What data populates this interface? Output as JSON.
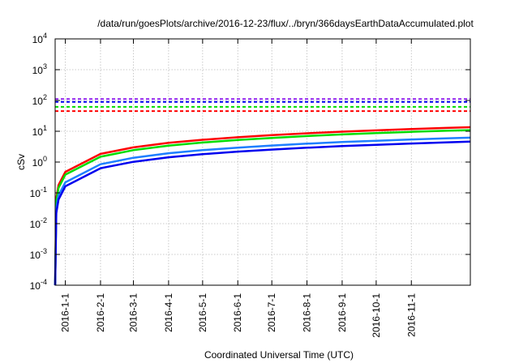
{
  "chart_data": {
    "type": "line",
    "title": "/data/run/goesPlots/archive/2016-12-23/flux/../bryn/366daysEarthDataAccumulated.plot",
    "xlabel": "Coordinated Universal Time (UTC)",
    "ylabel": "cSv",
    "yscale": "log",
    "ylim": [
      0.0001,
      10000
    ],
    "xlim_days_since_2015_12_23": [
      0,
      366
    ],
    "grid": true,
    "y_ticks": [
      {
        "value": 0.0001,
        "base": "10",
        "exp": "-4"
      },
      {
        "value": 0.001,
        "base": "10",
        "exp": "-3"
      },
      {
        "value": 0.01,
        "base": "10",
        "exp": "-2"
      },
      {
        "value": 0.1,
        "base": "10",
        "exp": "-1"
      },
      {
        "value": 1,
        "base": "10",
        "exp": "0"
      },
      {
        "value": 10,
        "base": "10",
        "exp": "1"
      },
      {
        "value": 100,
        "base": "10",
        "exp": "2"
      },
      {
        "value": 1000,
        "base": "10",
        "exp": "3"
      },
      {
        "value": 10000,
        "base": "10",
        "exp": "4"
      }
    ],
    "x_ticks": [
      {
        "day": 9,
        "label": "2016-1-1"
      },
      {
        "day": 40,
        "label": "2016-2-1"
      },
      {
        "day": 69,
        "label": "2016-3-1"
      },
      {
        "day": 100,
        "label": "2016-4-1"
      },
      {
        "day": 130,
        "label": "2016-5-1"
      },
      {
        "day": 161,
        "label": "2016-6-1"
      },
      {
        "day": 191,
        "label": "2016-7-1"
      },
      {
        "day": 222,
        "label": "2016-8-1"
      },
      {
        "day": 253,
        "label": "2016-9-1"
      },
      {
        "day": 283,
        "label": "2016-10-1"
      },
      {
        "day": 314,
        "label": "2016-11-1"
      }
    ],
    "x": [
      0,
      1,
      3,
      9,
      40,
      69,
      100,
      130,
      161,
      191,
      222,
      253,
      283,
      314,
      344,
      366
    ],
    "series": [
      {
        "name": "red",
        "color": "#ff0000",
        "values": [
          0.0001,
          0.066,
          0.18,
          0.48,
          1.84,
          3.0,
          4.2,
          5.3,
          6.4,
          7.5,
          8.6,
          9.7,
          10.7,
          11.8,
          12.8,
          13.5
        ]
      },
      {
        "name": "green",
        "color": "#00dd00",
        "values": [
          0.0001,
          0.053,
          0.146,
          0.39,
          1.49,
          2.43,
          3.4,
          4.3,
          5.2,
          6.1,
          7.0,
          7.9,
          8.7,
          9.6,
          10.4,
          10.9
        ]
      },
      {
        "name": "light-blue",
        "color": "#1e7fff",
        "values": [
          0.0001,
          0.03,
          0.083,
          0.22,
          0.85,
          1.38,
          1.93,
          2.44,
          2.94,
          3.45,
          3.96,
          4.46,
          4.92,
          5.43,
          5.89,
          6.2
        ]
      },
      {
        "name": "blue",
        "color": "#0000ee",
        "values": [
          0.0001,
          0.022,
          0.061,
          0.163,
          0.63,
          1.02,
          1.43,
          1.8,
          2.18,
          2.55,
          2.92,
          3.3,
          3.64,
          4.01,
          4.35,
          4.6
        ]
      }
    ],
    "thresholds": [
      {
        "name": "purple-threshold",
        "color": "#9a30f0",
        "value": 112
      },
      {
        "name": "blue-threshold",
        "color": "#0000ee",
        "value": 90
      },
      {
        "name": "green-threshold",
        "color": "#00dd00",
        "value": 62
      },
      {
        "name": "red-threshold",
        "color": "#ff0000",
        "value": 45
      }
    ]
  }
}
